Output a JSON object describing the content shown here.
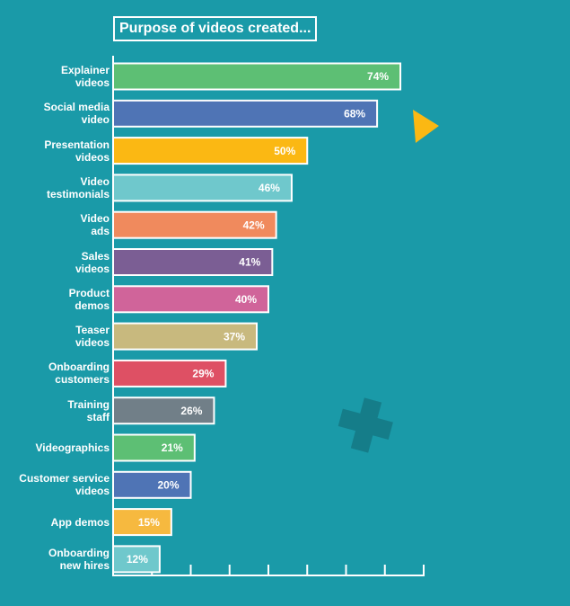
{
  "chart_data": {
    "type": "barh",
    "title": "Purpose of videos created...",
    "categories": [
      "Explainer\nvideos",
      "Social media\nvideo",
      "Presentation\nvideos",
      "Video\ntestimonials",
      "Video\nads",
      "Sales\nvideos",
      "Product\ndemos",
      "Teaser\nvideos",
      "Onboarding\ncustomers",
      "Training\nstaff",
      "Videographics",
      "Customer service\nvideos",
      "App demos",
      "Onboarding\nnew hires"
    ],
    "values": [
      74,
      68,
      50,
      46,
      42,
      41,
      40,
      37,
      29,
      26,
      21,
      20,
      15,
      12
    ],
    "value_labels": [
      "74%",
      "68%",
      "50%",
      "46%",
      "42%",
      "41%",
      "40%",
      "37%",
      "29%",
      "26%",
      "21%",
      "20%",
      "15%",
      "12%"
    ],
    "colors": [
      "#5dbf74",
      "#4f74b5",
      "#fbb813",
      "#6fc8cc",
      "#f08a5d",
      "#7b5e94",
      "#d0649a",
      "#c8b97e",
      "#de5064",
      "#717f88",
      "#5dbf74",
      "#4f74b5",
      "#f6b93f",
      "#6fc8cc"
    ],
    "xlim": [
      0,
      80
    ],
    "xticks": [
      0,
      10,
      20,
      30,
      40,
      50,
      60,
      70,
      80
    ]
  }
}
